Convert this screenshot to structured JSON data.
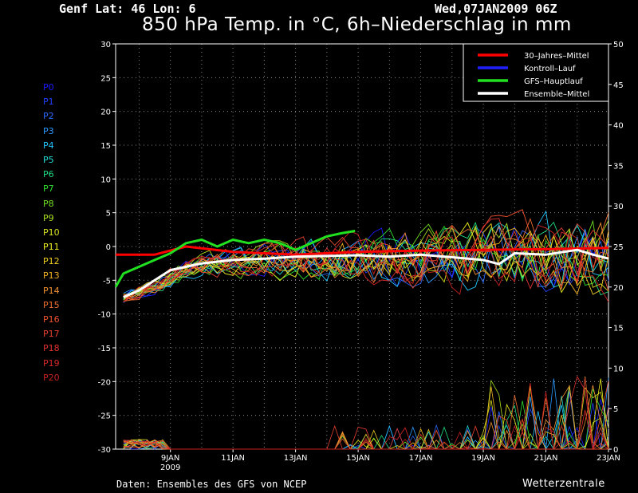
{
  "header": {
    "location": "Genf   Lat: 46 Lon: 6",
    "date": "Wed,07JAN2009 06Z",
    "title": "850 hPa Temp. in °C, 6h–Niederschlag in mm"
  },
  "footer": {
    "source": "Daten: Ensembles des GFS von NCEP",
    "brand": "Wetterzentrale"
  },
  "members": [
    "P0",
    "P1",
    "P2",
    "P3",
    "P4",
    "P5",
    "P6",
    "P7",
    "P8",
    "P9",
    "P10",
    "P11",
    "P12",
    "P13",
    "P14",
    "P15",
    "P16",
    "P17",
    "P18",
    "P19",
    "P20"
  ],
  "member_colors": [
    "#1a1aff",
    "#2040ff",
    "#2a6aff",
    "#2a9aff",
    "#22c6ff",
    "#20dcd4",
    "#20dc80",
    "#30e030",
    "#70e020",
    "#a8e020",
    "#d8e020",
    "#f0f020",
    "#f0d020",
    "#f0b020",
    "#f09030",
    "#f07030",
    "#f05030",
    "#e84030",
    "#e03030",
    "#d82828",
    "#c82020"
  ],
  "chart_data": {
    "type": "line",
    "x_start_day": 7.25,
    "x_range_days": [
      7.25,
      23.0
    ],
    "x_tick_labels": [
      "9JAN",
      "11JAN",
      "13JAN",
      "15JAN",
      "17JAN",
      "19JAN",
      "21JAN",
      "23JAN"
    ],
    "x_sublabel": "2009",
    "y_left_range": [
      -30,
      30
    ],
    "y_left_ticks": [
      "30",
      "25",
      "20",
      "15",
      "10",
      "5",
      "0",
      "-5",
      "-10",
      "-15",
      "-20",
      "-25",
      "-30"
    ],
    "y_right_range": [
      0,
      50
    ],
    "y_right_ticks": [
      "50",
      "45",
      "40",
      "35",
      "30",
      "25",
      "20",
      "15",
      "10",
      "5",
      "0"
    ],
    "legend": {
      "placement": "top-right",
      "entries": [
        {
          "label": "30–Jahres–Mittel",
          "color": "#ff0000"
        },
        {
          "label": "Kontroll–Lauf",
          "color": "#2020ff"
        },
        {
          "label": "GFS–Hauptlauf",
          "color": "#20e020"
        },
        {
          "label": "Ensemble–Mittel",
          "color": "#ffffff"
        }
      ]
    },
    "series": [
      {
        "name": "30–Jahres–Mittel",
        "color": "#ff0000",
        "x": [
          7.25,
          8.5,
          9.5,
          11,
          13,
          15,
          17,
          19,
          21,
          23
        ],
        "y": [
          -1.2,
          -1.2,
          0.0,
          -0.8,
          -1.2,
          -0.8,
          -0.6,
          -0.5,
          -0.4,
          -0.2
        ]
      },
      {
        "name": "GFS–Hauptlauf",
        "color": "#20e020",
        "x": [
          7.25,
          7.5,
          8.0,
          8.5,
          9.0,
          9.5,
          10.0,
          10.5,
          11.0,
          11.5,
          12.0,
          12.5,
          13.0,
          13.5,
          14.0,
          14.5,
          14.9
        ],
        "y": [
          -6.0,
          -4.0,
          -3.0,
          -2.0,
          -1.0,
          0.5,
          1.0,
          0.0,
          1.0,
          0.5,
          1.0,
          0.5,
          -0.5,
          0.5,
          1.5,
          2.0,
          2.3
        ]
      },
      {
        "name": "Ensemble–Mittel",
        "color": "#ffffff",
        "x": [
          7.5,
          8.0,
          8.5,
          9.0,
          9.5,
          10.0,
          11.0,
          12.0,
          13.0,
          14.0,
          15.0,
          16.0,
          17.0,
          18.0,
          19.0,
          19.5,
          20.0,
          21.0,
          22.0,
          22.5,
          23.0
        ],
        "y": [
          -7.5,
          -6.5,
          -5.0,
          -3.5,
          -3.0,
          -2.5,
          -2.0,
          -1.8,
          -1.5,
          -1.4,
          -1.3,
          -1.5,
          -1.2,
          -1.6,
          -2.0,
          -2.6,
          -1.0,
          -1.2,
          -0.5,
          -1.2,
          -1.8
        ]
      }
    ]
  }
}
